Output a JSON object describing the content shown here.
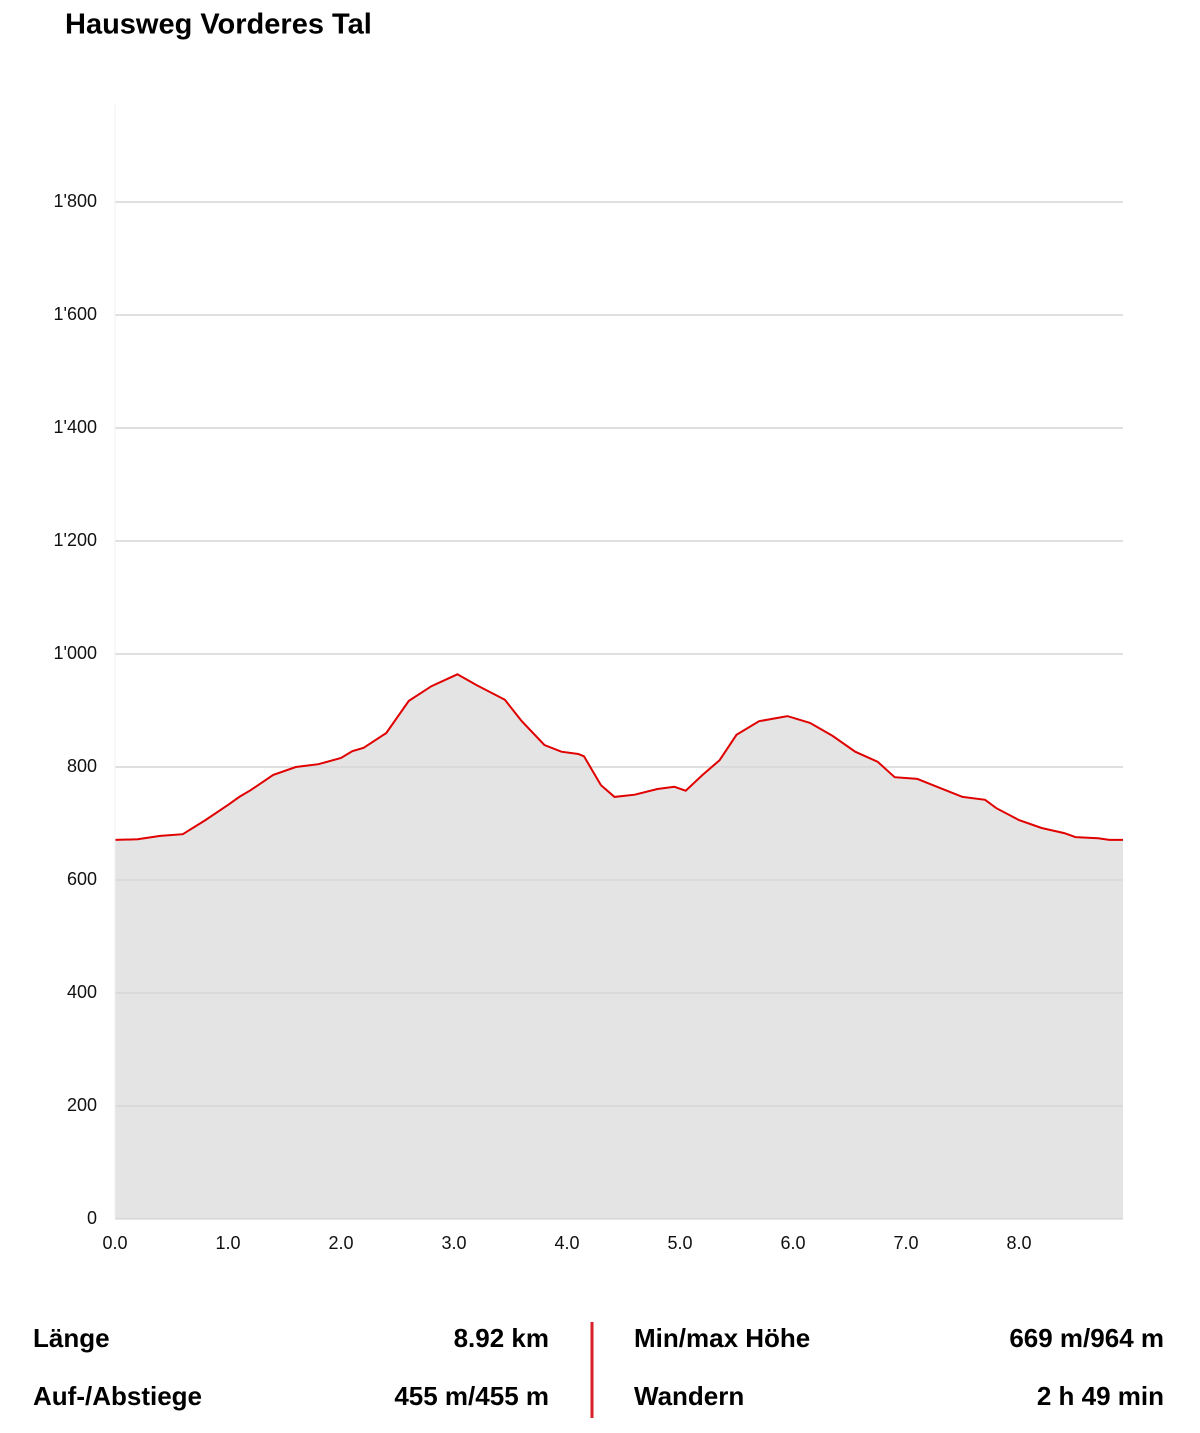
{
  "chart_data": {
    "type": "area",
    "title": "Hausweg Vorderes Tal",
    "x": [
      0,
      0.2,
      0.4,
      0.6,
      0.8,
      1.0,
      1.1,
      1.2,
      1.4,
      1.6,
      1.8,
      2.0,
      2.1,
      2.2,
      2.4,
      2.6,
      2.8,
      3.03,
      3.2,
      3.45,
      3.6,
      3.8,
      3.95,
      4.1,
      4.15,
      4.3,
      4.42,
      4.6,
      4.8,
      4.95,
      5.05,
      5.2,
      5.35,
      5.5,
      5.7,
      5.95,
      6.15,
      6.35,
      6.55,
      6.75,
      6.9,
      7.1,
      7.3,
      7.5,
      7.7,
      7.8,
      8.0,
      8.2,
      8.4,
      8.5,
      8.7,
      8.8,
      8.92
    ],
    "values": [
      671,
      672,
      678,
      681,
      706,
      733,
      747,
      759,
      786,
      800,
      805,
      816,
      828,
      834,
      860,
      917,
      943,
      964,
      945,
      919,
      881,
      839,
      827,
      823,
      819,
      768,
      747,
      751,
      761,
      765,
      758,
      786,
      812,
      857,
      881,
      890,
      878,
      855,
      827,
      809,
      782,
      779,
      763,
      747,
      742,
      727,
      706,
      692,
      683,
      676,
      674,
      671,
      671
    ],
    "line_color": "#e00000",
    "fill_color": "#e4e4e4",
    "xlim": [
      0,
      8.92
    ],
    "ylim": [
      0,
      2000
    ],
    "xticks": [
      {
        "value": 0,
        "label": "0.0"
      },
      {
        "value": 1,
        "label": "1.0"
      },
      {
        "value": 2,
        "label": "2.0"
      },
      {
        "value": 3,
        "label": "3.0"
      },
      {
        "value": 4,
        "label": "4.0"
      },
      {
        "value": 5,
        "label": "5.0"
      },
      {
        "value": 6,
        "label": "6.0"
      },
      {
        "value": 7,
        "label": "7.0"
      },
      {
        "value": 8,
        "label": "8.0"
      }
    ],
    "yticks": [
      0,
      200,
      400,
      600,
      800,
      {
        "value": 1000,
        "label": "1'000"
      },
      {
        "value": 1200,
        "label": "1'200"
      },
      {
        "value": 1400,
        "label": "1'400"
      },
      {
        "value": 1600,
        "label": "1'600"
      },
      {
        "value": 1800,
        "label": "1'800"
      }
    ],
    "grid": true
  },
  "stats": [
    {
      "label": "Länge",
      "value": "8.92 km"
    },
    {
      "label": "Min/max Höhe",
      "value": "669 m/964 m"
    },
    {
      "label": "Auf-/Abstiege",
      "value": "455 m/455 m"
    },
    {
      "label": "Wandern",
      "value": "2 h 49 min"
    }
  ]
}
